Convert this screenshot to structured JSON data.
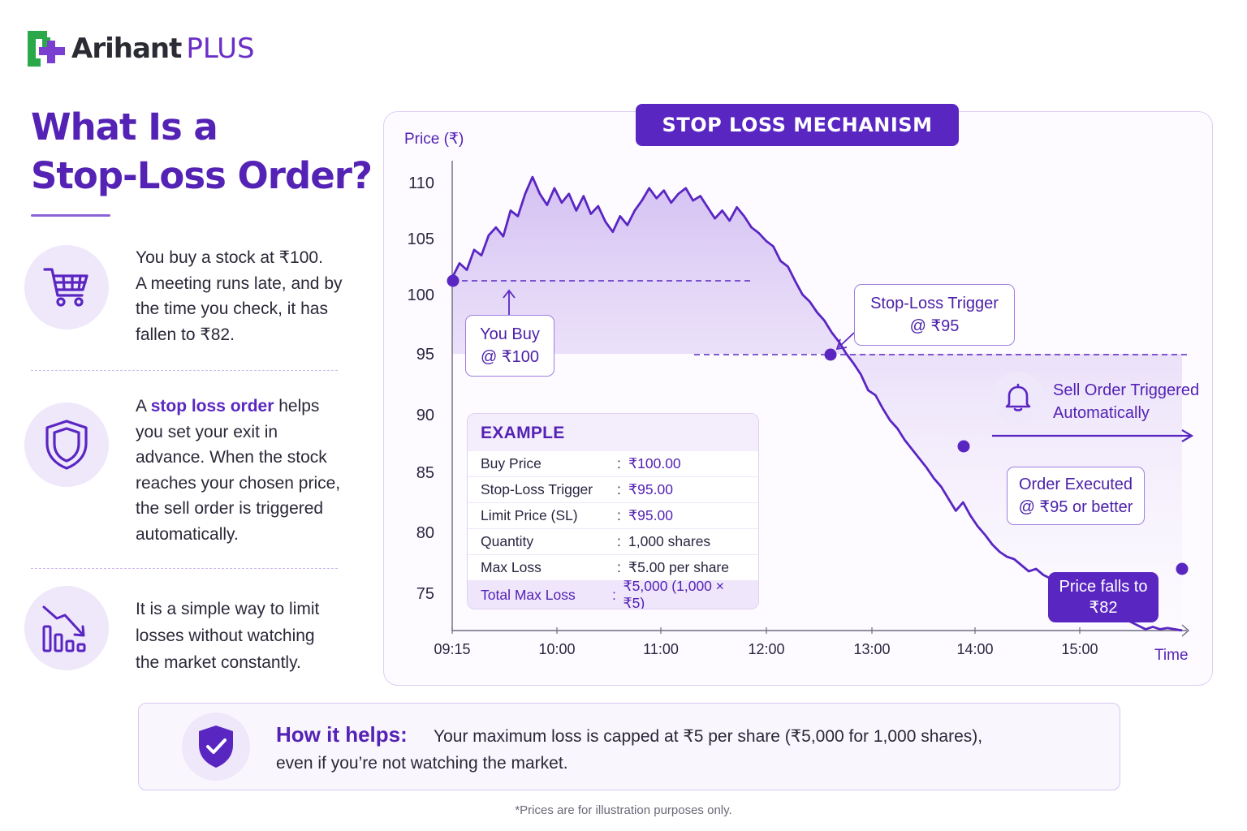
{
  "logo": {
    "brand": "Arihant",
    "plus": "PLUS"
  },
  "headline": {
    "line1": "What Is a",
    "line2": "Stop-Loss Order?"
  },
  "points": {
    "p1": {
      "icon": "shopping-cart-icon",
      "l1": "You buy a stock at ₹100.",
      "l2": "A meeting runs late, and by",
      "l3": "the time you check, it has",
      "l4": "fallen to ₹82."
    },
    "p2": {
      "icon": "shield-icon",
      "pre": "A ",
      "accent": "stop loss order",
      "post": " helps",
      "l2": "you set your exit in",
      "l3": "advance. When the stock",
      "l4": "reaches your chosen price,",
      "l5": "the sell order is triggered",
      "l6": "automatically."
    },
    "p3": {
      "icon": "falling-bars-icon",
      "l1": "It is a simple way to limit",
      "l2": "losses without watching",
      "l3": "the market constantly."
    }
  },
  "chart_data": {
    "type": "line",
    "title": "STOP LOSS MECHANISM",
    "ylabel": "Price (₹)",
    "xlabel": "Time",
    "yticks": [
      110,
      105,
      100,
      95,
      90,
      85,
      80,
      75
    ],
    "xticks": [
      "09:15",
      "10:00",
      "11:00",
      "12:00",
      "13:00",
      "14:00",
      "15:00"
    ],
    "ylim": [
      72,
      111.5
    ],
    "series": [
      {
        "values_x_minutes": [
          0,
          4,
          8,
          12,
          16,
          20,
          24,
          28,
          32,
          36,
          40,
          44,
          48,
          52,
          56,
          60,
          64,
          68,
          72,
          76,
          80,
          84,
          88,
          92,
          96,
          100,
          104,
          108,
          112,
          116,
          120,
          124,
          128,
          132,
          136,
          140,
          144,
          148,
          152,
          156,
          160,
          164,
          168,
          172,
          176,
          180,
          184,
          188,
          192,
          196,
          200,
          204,
          208,
          212,
          216,
          220,
          224,
          228,
          232,
          236,
          240,
          244,
          248,
          252,
          256,
          260,
          264,
          268,
          272,
          276,
          280,
          284,
          288,
          292,
          296,
          300,
          304,
          308,
          312,
          316,
          320,
          324,
          328,
          332,
          336,
          340,
          344,
          348,
          352,
          356,
          360,
          364,
          368,
          372,
          376,
          380,
          384,
          388,
          392,
          396,
          400
        ],
        "values": [
          101.5,
          102.8,
          102.2,
          104.0,
          103.5,
          105.3,
          106.0,
          105.2,
          107.5,
          107.0,
          109.0,
          110.5,
          109.0,
          108.0,
          109.5,
          108.2,
          109.0,
          107.5,
          108.8,
          107.2,
          107.9,
          106.5,
          105.6,
          107.0,
          106.2,
          107.5,
          108.4,
          109.5,
          108.6,
          109.3,
          108.2,
          109.0,
          109.5,
          108.4,
          108.8,
          107.8,
          106.8,
          107.5,
          106.6,
          107.8,
          107.0,
          106.0,
          105.5,
          104.8,
          104.3,
          103.0,
          102.5,
          101.2,
          100.0,
          99.4,
          98.5,
          97.8,
          96.8,
          96.0,
          95.0,
          94.2,
          93.3,
          92.0,
          91.6,
          90.5,
          89.5,
          88.8,
          87.8,
          87.0,
          86.2,
          85.4,
          84.5,
          83.8,
          82.8,
          81.8,
          82.5,
          81.4,
          80.5,
          79.8,
          79.0,
          78.4,
          78.0,
          77.8,
          77.3,
          76.8,
          77.0,
          76.5,
          76.2,
          75.9,
          75.5,
          75.0,
          74.8,
          74.5,
          74.2,
          73.9,
          73.5,
          73.2,
          72.9,
          72.6,
          72.3,
          72.0,
          72.2,
          72.0,
          72.1,
          72.0,
          71.9
        ]
      }
    ],
    "buy_level": 100,
    "trigger_level": 95,
    "markers": [
      {
        "label": "buy",
        "x_minutes": 0,
        "y": 101.5
      },
      {
        "label": "trigger",
        "x_minutes": 216,
        "y": 95
      },
      {
        "label": "executed",
        "x_minutes": 304,
        "y": 85
      },
      {
        "label": "end",
        "x_minutes": 400,
        "y": 73
      }
    ]
  },
  "callouts": {
    "buy": {
      "l1": "You Buy",
      "l2": "@ ₹100"
    },
    "trigger": {
      "l1": "Stop-Loss Trigger",
      "l2": "@ ₹95"
    },
    "sell": {
      "icon": "bell-icon",
      "l1": "Sell Order Triggered",
      "l2": "Automatically"
    },
    "executed": {
      "l1": "Order Executed",
      "l2": "@ ₹95 or better"
    },
    "fall": {
      "l1": "Price falls to",
      "l2": "₹82"
    }
  },
  "example": {
    "title": "EXAMPLE",
    "rows": [
      {
        "label": "Buy Price",
        "value": "₹100.00"
      },
      {
        "label": "Stop-Loss Trigger",
        "value": "₹95.00"
      },
      {
        "label": "Limit Price (SL)",
        "value": "₹95.00"
      },
      {
        "label": "Quantity",
        "value": "1,000 shares"
      },
      {
        "label": "Max Loss",
        "value": "₹5.00 per share"
      }
    ],
    "total": {
      "label": "Total Max Loss",
      "value": "₹5,000 (1,000 × ₹5)"
    }
  },
  "banner": {
    "icon": "shield-check-icon",
    "title": "How it helps:",
    "text1": "Your maximum loss is capped at ₹5 per share (₹5,000 for 1,000 shares),",
    "text2": "even if you’re not watching the market."
  },
  "footnote": "*Prices are for illustration purposes only.",
  "colors": {
    "primary": "#5a26c2",
    "accent_light": "#efe7fa",
    "logo_green": "#2aa84a"
  }
}
